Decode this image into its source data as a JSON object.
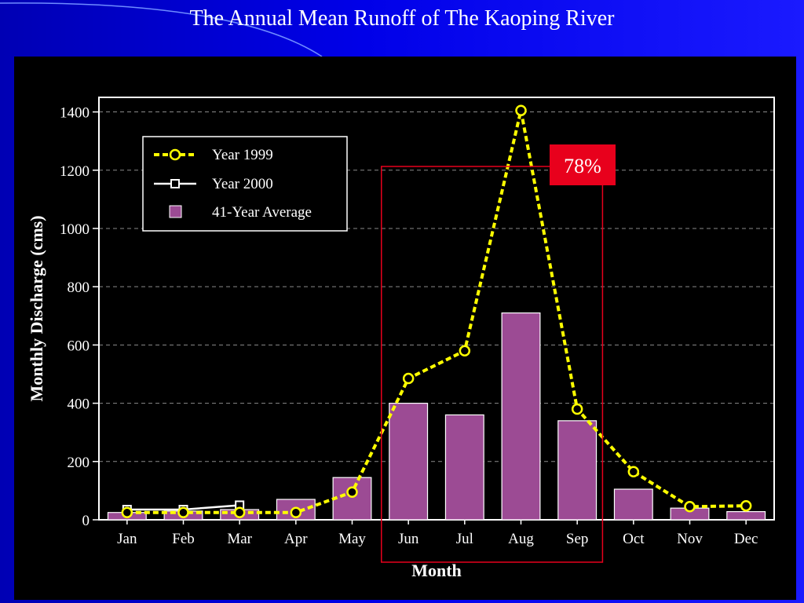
{
  "slide": {
    "title": "The Annual Mean Runoff of The Kaoping River"
  },
  "colors": {
    "background": "#0000e0",
    "panel": "#000000",
    "avg_bar": "#9c4b94",
    "year1999": "#ffff00",
    "year2000": "#ffffff",
    "highlight": "#e8001c"
  },
  "chart_data": {
    "type": "bar",
    "title": "",
    "xlabel": "Month",
    "ylabel": "Monthly Discharge (cms)",
    "ylim": [
      0,
      1450
    ],
    "yticks": [
      0,
      200,
      400,
      600,
      800,
      1000,
      1200,
      1400
    ],
    "grid": true,
    "legend_position": "top-left",
    "categories": [
      "Jan",
      "Feb",
      "Mar",
      "Apr",
      "May",
      "Jun",
      "Jul",
      "Aug",
      "Sep",
      "Oct",
      "Nov",
      "Dec"
    ],
    "series": [
      {
        "name": "Year 1999",
        "kind": "line",
        "style": "dashed",
        "marker": "circle",
        "values": [
          25,
          25,
          25,
          25,
          95,
          485,
          580,
          1405,
          380,
          165,
          45,
          48
        ]
      },
      {
        "name": "Year 2000",
        "kind": "line",
        "style": "solid",
        "marker": "square",
        "values": [
          35,
          35,
          50,
          null,
          null,
          null,
          null,
          null,
          null,
          null,
          null,
          null
        ]
      },
      {
        "name": "41-Year Average",
        "kind": "bar",
        "values": [
          25,
          30,
          35,
          70,
          145,
          400,
          360,
          710,
          340,
          105,
          40,
          28
        ]
      }
    ],
    "annotations": [
      {
        "text": "78%",
        "span": [
          "Jun",
          "Sep"
        ]
      }
    ]
  }
}
